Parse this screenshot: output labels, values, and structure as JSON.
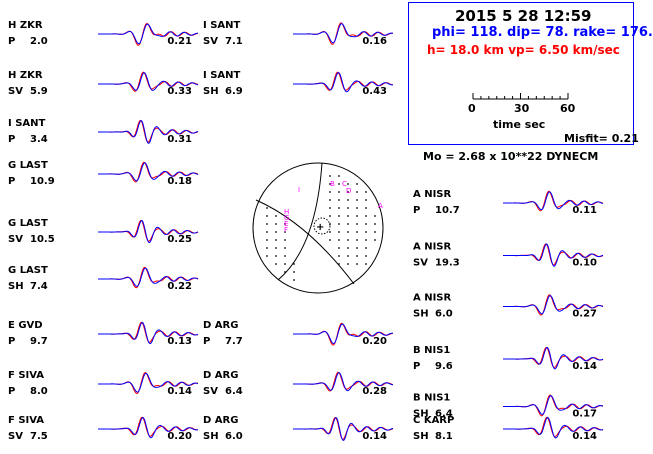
{
  "header": {
    "date_time": "2015  5 28    12:59",
    "mechanism": "phi= 118. dip= 78. rake= 176.",
    "depth_vp": "h= 18.0 km  vp= 6.50 km/sec",
    "time_axis_label": "time  sec",
    "time_ticks": [
      "0",
      "30",
      "60"
    ],
    "misfit": "Misfit= 0.21",
    "moment": "Mo =  2.68 x 10**22 DYNECM"
  },
  "colors": {
    "observed": "#ff0000",
    "synthetic": "#0000ff",
    "text_blue": "#0000ff",
    "text_red": "#ff0000",
    "beachball_labels": "#ff00ff"
  },
  "beachball": {
    "labels": [
      "I",
      "H",
      "G",
      "E",
      "F",
      "B",
      "C",
      "D",
      "A"
    ]
  },
  "chart_data": {
    "type": "line",
    "description_source": "waveform comparison panels",
    "series_colors": {
      "red": "observed",
      "blue": "synthetic"
    },
    "panels": [
      {
        "network": "H",
        "station": "ZKR",
        "phase": "P",
        "azimuth": "2.0",
        "amp": "0.21"
      },
      {
        "network": "H",
        "station": "ZKR",
        "phase": "SV",
        "azimuth": "5.9",
        "amp": "0.33"
      },
      {
        "network": "I",
        "station": "SANT",
        "phase": "P",
        "azimuth": "3.4",
        "amp": "0.31"
      },
      {
        "network": "G",
        "station": "LAST",
        "phase": "P",
        "azimuth": "10.9",
        "amp": "0.18"
      },
      {
        "network": "G",
        "station": "LAST",
        "phase": "SV",
        "azimuth": "10.5",
        "amp": "0.25"
      },
      {
        "network": "G",
        "station": "LAST",
        "phase": "SH",
        "azimuth": "7.4",
        "amp": "0.22"
      },
      {
        "network": "E",
        "station": "GVD",
        "phase": "P",
        "azimuth": "9.7",
        "amp": "0.13"
      },
      {
        "network": "F",
        "station": "SIVA",
        "phase": "P",
        "azimuth": "8.0",
        "amp": "0.14"
      },
      {
        "network": "F",
        "station": "SIVA",
        "phase": "SV",
        "azimuth": "7.5",
        "amp": "0.20"
      },
      {
        "network": "I",
        "station": "SANT",
        "phase": "SV",
        "azimuth": "7.1",
        "amp": "0.16"
      },
      {
        "network": "I",
        "station": "SANT",
        "phase": "SH",
        "azimuth": "6.9",
        "amp": "0.43"
      },
      {
        "network": "D",
        "station": "ARG",
        "phase": "P",
        "azimuth": "7.7",
        "amp": "0.20"
      },
      {
        "network": "D",
        "station": "ARG",
        "phase": "SV",
        "azimuth": "6.4",
        "amp": "0.28"
      },
      {
        "network": "D",
        "station": "ARG",
        "phase": "SH",
        "azimuth": "6.0",
        "amp": "0.14"
      },
      {
        "network": "A",
        "station": "NISR",
        "phase": "P",
        "azimuth": "10.7",
        "amp": "0.11"
      },
      {
        "network": "A",
        "station": "NISR",
        "phase": "SV",
        "azimuth": "19.3",
        "amp": "0.10"
      },
      {
        "network": "A",
        "station": "NISR",
        "phase": "SH",
        "azimuth": "6.0",
        "amp": "0.27"
      },
      {
        "network": "B",
        "station": "NIS1",
        "phase": "P",
        "azimuth": "9.6",
        "amp": "0.14"
      },
      {
        "network": "B",
        "station": "NIS1",
        "phase": "SH",
        "azimuth": "6.4",
        "amp": "0.17"
      },
      {
        "network": "C",
        "station": "KARP",
        "phase": "SH",
        "azimuth": "8.1",
        "amp": "0.14"
      }
    ]
  }
}
